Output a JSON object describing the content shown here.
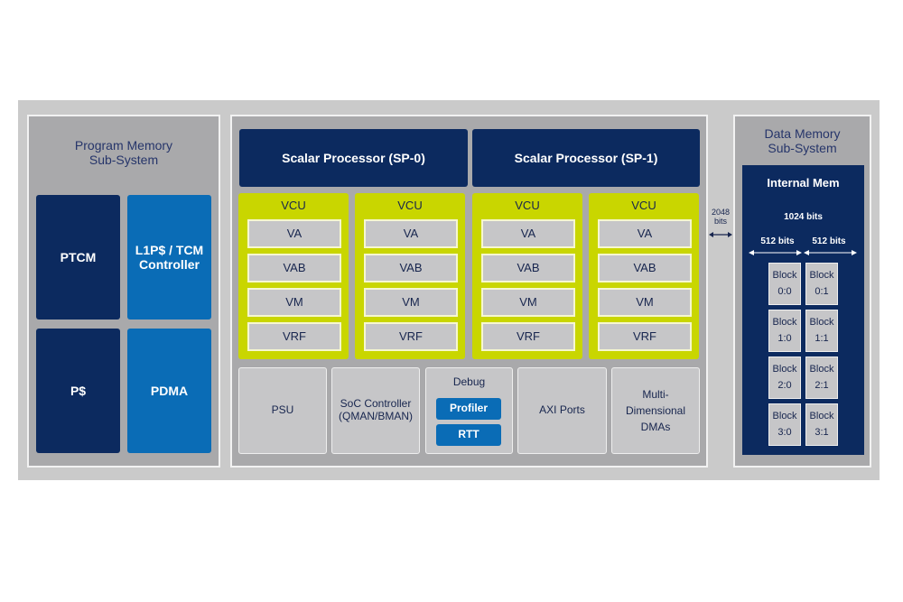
{
  "program_memory": {
    "title": "Program Memory\nSub-System",
    "blocks": [
      "PTCM",
      "L1P$ / TCM\nController",
      "P$",
      "PDMA"
    ]
  },
  "scalar_processors": [
    "Scalar Processor (SP-0)",
    "Scalar Processor (SP-1)"
  ],
  "vcus": [
    {
      "label": "VCU",
      "units": [
        "VA",
        "VAB",
        "VM",
        "VRF"
      ]
    },
    {
      "label": "VCU",
      "units": [
        "VA",
        "VAB",
        "VM",
        "VRF"
      ]
    },
    {
      "label": "VCU",
      "units": [
        "VA",
        "VAB",
        "VM",
        "VRF"
      ]
    },
    {
      "label": "VCU",
      "units": [
        "VA",
        "VAB",
        "VM",
        "VRF"
      ]
    }
  ],
  "bottom": {
    "psu": "PSU",
    "soc": "SoC Controller\n(QMAN/BMAN)",
    "debug": "Debug",
    "profiler": "Profiler",
    "rtt": "RTT",
    "axi": "AXI Ports",
    "dma": "Multi-\nDimensional\nDMAs"
  },
  "bus_width": "2048\nbits",
  "data_memory": {
    "title": "Data Memory\nSub-System",
    "internal": "Internal Mem",
    "width": "1024 bits",
    "half_left": "512 bits",
    "half_right": "512 bits",
    "blocks": [
      "Block\n0:0",
      "Block\n0:1",
      "Block\n1:0",
      "Block\n1:1",
      "Block\n2:0",
      "Block\n2:1",
      "Block\n3:0",
      "Block\n3:1"
    ]
  },
  "colors": {
    "navy": "#0c2a5f",
    "blue": "#0a6cb6",
    "vcu": "#c9d600",
    "panel": "#a9a9ab"
  }
}
